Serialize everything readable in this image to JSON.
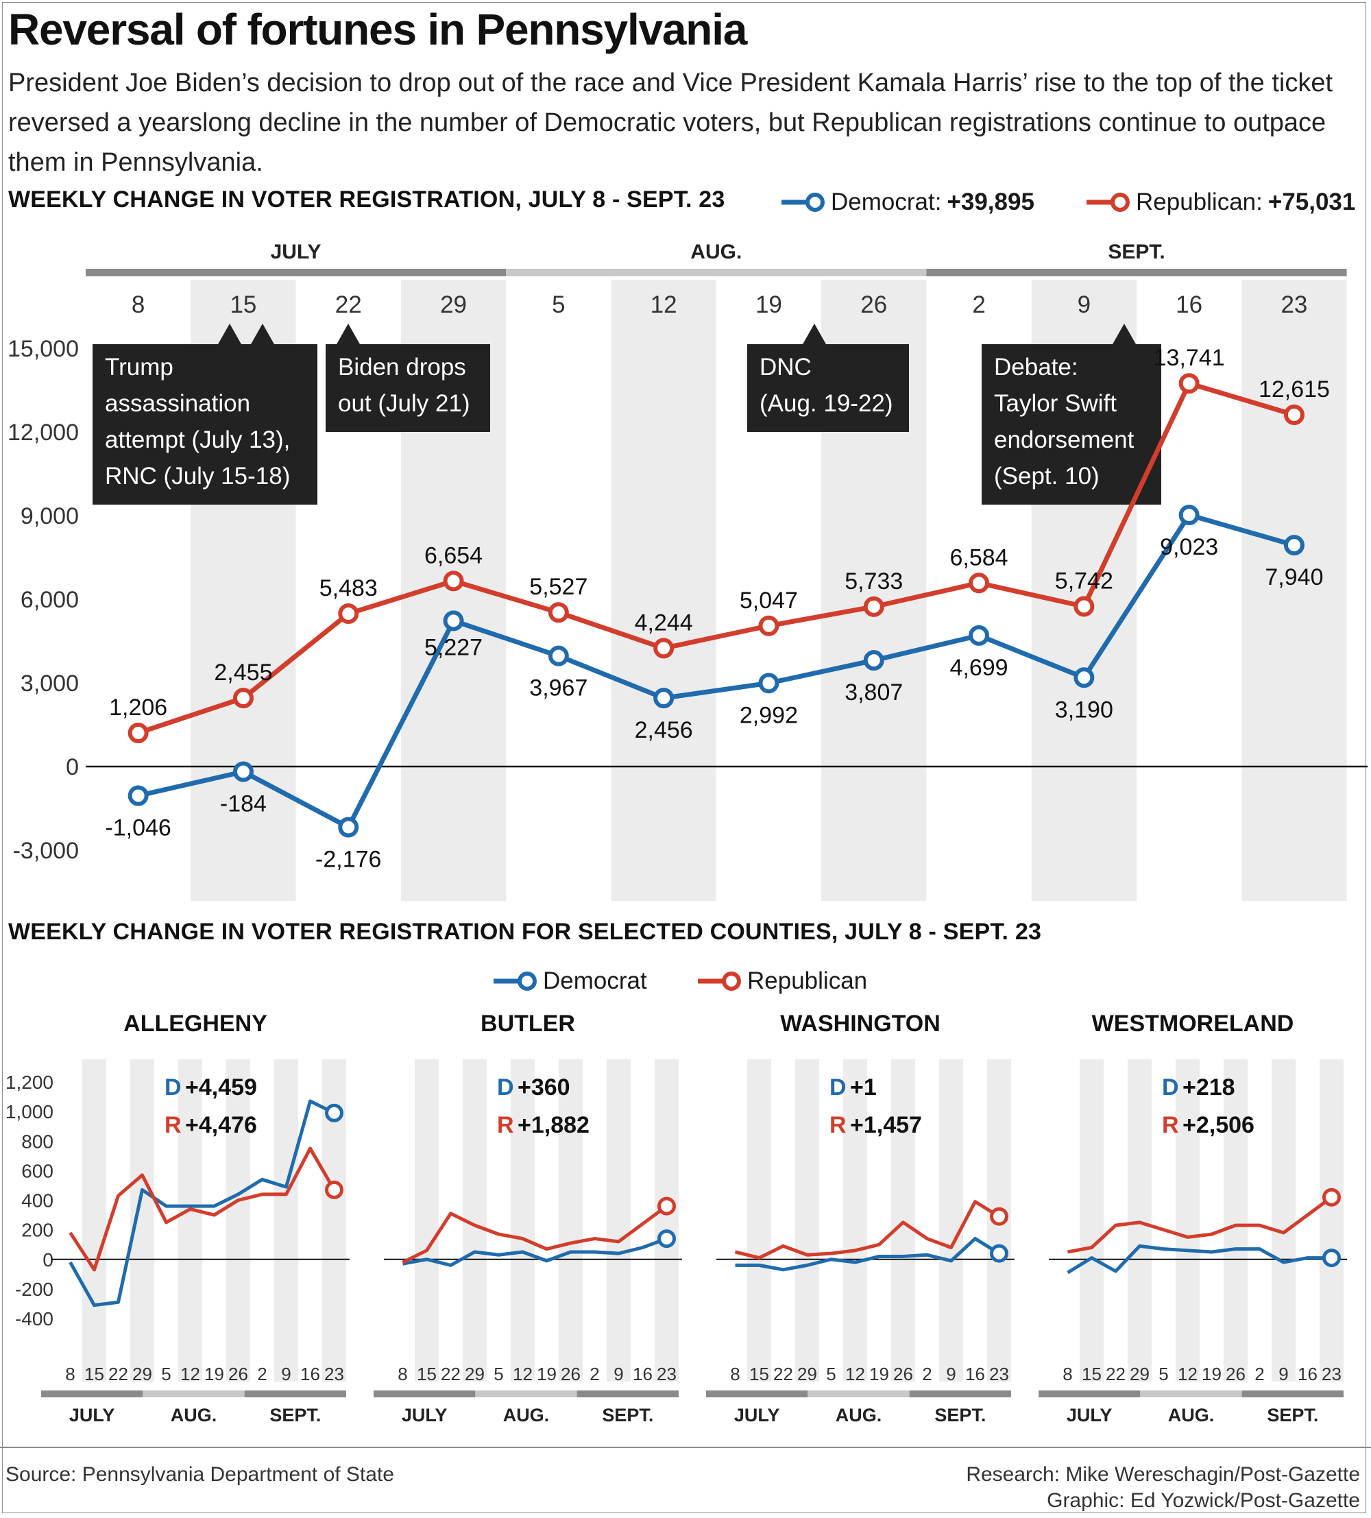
{
  "title": "Reversal of fortunes in Pennsylvania",
  "subtitle": "President Joe Biden’s decision to drop out of the race and Vice President Kamala Harris’ rise to the top of the ticket reversed a yearslong decline in the number of Democratic voters, but Republican registrations continue to outpace them in Pennsylvania.",
  "main_section_title": "WEEKLY CHANGE IN VOTER REGISTRATION, JULY 8 - SEPT. 23",
  "counties_section_title": "WEEKLY CHANGE IN VOTER REGISTRATION FOR SELECTED COUNTIES, JULY 8 - SEPT. 23",
  "legend_main": {
    "dem_label": "Democrat:",
    "dem_total": "+39,895",
    "rep_label": "Republican:",
    "rep_total": "+75,031"
  },
  "legend_counties": {
    "dem_label": "Democrat",
    "rep_label": "Republican"
  },
  "colors": {
    "democrat": "#1f6bad",
    "republican": "#d23d2c",
    "shade": "#ececec",
    "annotation_bg": "#222222"
  },
  "source": "Source: Pennsylvania Department of State",
  "credit_research": "Research: Mike Wereschagin/Post-Gazette",
  "credit_graphic": "Graphic: Ed Yozwick/Post-Gazette",
  "chart_data": [
    {
      "type": "line",
      "title": "WEEKLY CHANGE IN VOTER REGISTRATION, JULY 8 - SEPT. 23",
      "months": [
        "JULY",
        "AUG.",
        "SEPT."
      ],
      "month_of_week": [
        0,
        0,
        0,
        0,
        1,
        1,
        1,
        1,
        2,
        2,
        2,
        2
      ],
      "categories": [
        "8",
        "15",
        "22",
        "29",
        "5",
        "12",
        "19",
        "26",
        "2",
        "9",
        "16",
        "23"
      ],
      "y_ticks": [
        15000,
        12000,
        9000,
        6000,
        3000,
        0,
        -3000
      ],
      "y_tick_labels": [
        "15,000",
        "12,000",
        "9,000",
        "6,000",
        "3,000",
        "0",
        "-3,000"
      ],
      "ylim": [
        -4400,
        16500
      ],
      "grid": false,
      "legend_position": "top-right",
      "series": [
        {
          "name": "Democrat",
          "values": [
            -1046,
            -184,
            -2176,
            5227,
            3967,
            2456,
            2992,
            3807,
            4699,
            3190,
            9023,
            7940
          ],
          "labels": [
            "-1,046",
            "-184",
            "-2,176",
            "5,227",
            "3,967",
            "2,456",
            "2,992",
            "3,807",
            "4,699",
            "3,190",
            "9,023",
            "7,940"
          ]
        },
        {
          "name": "Republican",
          "values": [
            1206,
            2455,
            5483,
            6654,
            5527,
            4244,
            5047,
            5733,
            6584,
            5742,
            13741,
            12615
          ],
          "labels": [
            "1,206",
            "2,455",
            "5,483",
            "6,654",
            "5,527",
            "4,244",
            "5,047",
            "5,733",
            "6,584",
            "5,742",
            "13,741",
            "12,615"
          ]
        }
      ],
      "annotations": [
        {
          "text": [
            "Trump",
            "assassination",
            "attempt (July 13),",
            "RNC (July 15-18)"
          ],
          "week_index": [
            1,
            1
          ]
        },
        {
          "text": [
            "Biden drops",
            "out (July 21)"
          ],
          "week_index": [
            2
          ]
        },
        {
          "text": [
            "DNC",
            "(Aug. 19-22)"
          ],
          "week_index": [
            6
          ]
        },
        {
          "text": [
            "Debate:",
            "Taylor Swift",
            "endorsement",
            "(Sept. 10)"
          ],
          "week_index": [
            9
          ]
        }
      ]
    },
    {
      "type": "line",
      "title": "ALLEGHENY",
      "totals": {
        "dem": "+4,459",
        "rep": "+4,476"
      },
      "categories": [
        "8",
        "15",
        "22",
        "29",
        "5",
        "12",
        "19",
        "26",
        "2",
        "9",
        "16",
        "23"
      ],
      "y_ticks": [
        1200,
        1000,
        800,
        600,
        400,
        200,
        0,
        -200,
        -400
      ],
      "y_tick_labels": [
        "1,200",
        "1,000",
        "800",
        "600",
        "400",
        "200",
        "0",
        "-200",
        "-400"
      ],
      "ylim": [
        -480,
        1350
      ],
      "series": [
        {
          "name": "Democrat",
          "values": [
            -20,
            -310,
            -290,
            470,
            360,
            360,
            360,
            440,
            540,
            490,
            1070,
            990
          ]
        },
        {
          "name": "Republican",
          "values": [
            180,
            -70,
            430,
            570,
            250,
            340,
            300,
            400,
            440,
            440,
            750,
            470
          ]
        }
      ]
    },
    {
      "type": "line",
      "title": "BUTLER",
      "totals": {
        "dem": "+360",
        "rep": "+1,882"
      },
      "categories": [
        "8",
        "15",
        "22",
        "29",
        "5",
        "12",
        "19",
        "26",
        "2",
        "9",
        "16",
        "23"
      ],
      "ylim": [
        -480,
        1350
      ],
      "series": [
        {
          "name": "Democrat",
          "values": [
            -30,
            0,
            -40,
            50,
            30,
            50,
            -10,
            50,
            50,
            40,
            80,
            140
          ]
        },
        {
          "name": "Republican",
          "values": [
            -20,
            60,
            310,
            230,
            170,
            140,
            70,
            110,
            140,
            120,
            240,
            360
          ]
        }
      ]
    },
    {
      "type": "line",
      "title": "WASHINGTON",
      "totals": {
        "dem": "+1",
        "rep": "+1,457"
      },
      "categories": [
        "8",
        "15",
        "22",
        "29",
        "5",
        "12",
        "19",
        "26",
        "2",
        "9",
        "16",
        "23"
      ],
      "ylim": [
        -480,
        1350
      ],
      "series": [
        {
          "name": "Democrat",
          "values": [
            -40,
            -40,
            -70,
            -40,
            0,
            -20,
            20,
            20,
            30,
            -10,
            140,
            40
          ]
        },
        {
          "name": "Republican",
          "values": [
            50,
            10,
            90,
            30,
            40,
            60,
            100,
            250,
            140,
            80,
            390,
            290
          ]
        }
      ]
    },
    {
      "type": "line",
      "title": "WESTMORELAND",
      "totals": {
        "dem": "+218",
        "rep": "+2,506"
      },
      "categories": [
        "8",
        "15",
        "22",
        "29",
        "5",
        "12",
        "19",
        "26",
        "2",
        "9",
        "16",
        "23"
      ],
      "ylim": [
        -480,
        1350
      ],
      "series": [
        {
          "name": "Democrat",
          "values": [
            -90,
            10,
            -80,
            90,
            70,
            60,
            50,
            70,
            70,
            -20,
            10,
            10
          ]
        },
        {
          "name": "Republican",
          "values": [
            50,
            80,
            230,
            250,
            200,
            150,
            170,
            230,
            230,
            180,
            300,
            420
          ]
        }
      ]
    }
  ]
}
